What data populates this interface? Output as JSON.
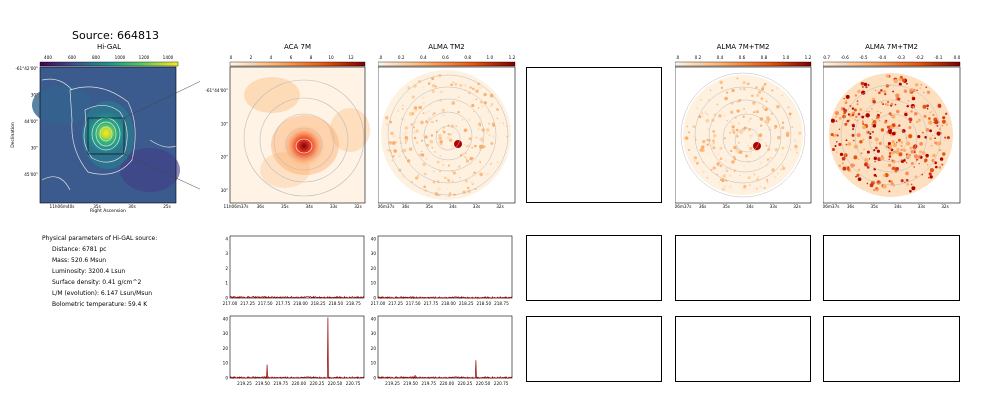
{
  "figure": {
    "title": "Source: 664813"
  },
  "params": {
    "heading": "Physical parameters of Hi-GAL source:",
    "lines": [
      "Distance: 6781 pc",
      "Mass: 520.6 Msun",
      "Luminosity: 3200.4 Lsun",
      "Surface density: 0.41 g/cm^2",
      "L/M (evolution): 6.147 Lsun/Msun",
      "Bolometric temperature: 59.4 K"
    ]
  },
  "colors": {
    "viridis_low": "#3b528b",
    "viridis_high": "#fde725",
    "orange_low": "#fff5eb",
    "orange_high": "#7f0000",
    "spectrum_line": "#8b0000",
    "contour": "#bbbbbb"
  },
  "chart_data": [
    {
      "type": "heatmap",
      "title": "Hi-GAL",
      "colormap": "viridis",
      "colorbar_ticks": [
        "400",
        "600",
        "800",
        "1000",
        "1200",
        "1400"
      ],
      "xlabel": "Right Ascension",
      "ylabel": "Declination",
      "xticks": [
        "11h06m40s",
        "35s",
        "30s",
        "25s"
      ],
      "yticks": [
        "-61°42'00\"",
        "30\"",
        "44'00\"",
        "30\"",
        "45'00\""
      ]
    },
    {
      "type": "heatmap",
      "title": "ACA 7M",
      "colormap": "orange",
      "colorbar_ticks": [
        "0",
        "2",
        "4",
        "6",
        "8",
        "10",
        "12"
      ],
      "xticks": [
        "11h06m37s",
        "36s",
        "35s",
        "34s",
        "33s",
        "32s"
      ],
      "yticks": [
        "-61°44'00\"",
        "10\"",
        "20\"",
        "30\""
      ]
    },
    {
      "type": "heatmap",
      "title": "ALMA TM2",
      "colormap": "orange",
      "colorbar_ticks": [
        "0.0",
        "0.2",
        "0.4",
        "0.6",
        "0.8",
        "1.0",
        "1.2"
      ],
      "xticks": [
        "11h06m37s",
        "36s",
        "35s",
        "34s",
        "33s",
        "32s"
      ]
    },
    {
      "type": "heatmap",
      "title": "ALMA 7M+TM2",
      "colormap": "orange",
      "colorbar_ticks": [
        "0.0",
        "0.2",
        "0.4",
        "0.6",
        "0.8",
        "1.0",
        "1.2"
      ],
      "xticks": [
        "11h06m37s",
        "36s",
        "35s",
        "34s",
        "33s",
        "32s"
      ]
    },
    {
      "type": "heatmap",
      "title": "ALMA 7M+TM2",
      "colormap": "orange",
      "colorbar_ticks": [
        "-0.7",
        "-0.6",
        "-0.5",
        "-0.4",
        "-0.3",
        "-0.2",
        "-0.1",
        "0.0"
      ],
      "xticks": [
        "11h06m37s",
        "36s",
        "35s",
        "34s",
        "33s",
        "32s"
      ]
    },
    {
      "type": "line",
      "panel": "spectrum-aca-low",
      "x": [
        217.0,
        218.9
      ],
      "xticks": [
        "217.00",
        "217.25",
        "217.50",
        "217.75",
        "218.00",
        "218.25",
        "218.50",
        "218.75"
      ],
      "yticks": [
        "0",
        "1",
        "2",
        "3",
        "4"
      ],
      "ylim": [
        0,
        4.2
      ],
      "series": [
        {
          "peaks": [],
          "baseline": 0.05
        }
      ]
    },
    {
      "type": "line",
      "panel": "spectrum-tm2-low",
      "x": [
        217.0,
        218.9
      ],
      "xticks": [
        "217.00",
        "217.25",
        "217.50",
        "217.75",
        "218.00",
        "218.25",
        "218.50",
        "218.75"
      ],
      "yticks": [
        "0",
        "10",
        "20",
        "30",
        "40"
      ],
      "ylim": [
        0,
        42
      ],
      "series": [
        {
          "peaks": [],
          "baseline": 0.3
        }
      ]
    },
    {
      "type": "line",
      "panel": "spectrum-aca-high",
      "x": [
        219.05,
        220.9
      ],
      "xticks": [
        "219.25",
        "219.50",
        "219.75",
        "220.00",
        "220.25",
        "220.50",
        "220.75"
      ],
      "yticks": [
        "0",
        "10",
        "20",
        "30",
        "40"
      ],
      "ylim": [
        0,
        42
      ],
      "series": [
        {
          "peaks": [
            [
              219.56,
              9
            ],
            [
              220.4,
              41
            ]
          ],
          "baseline": 0.3
        }
      ]
    },
    {
      "type": "line",
      "panel": "spectrum-tm2-high",
      "x": [
        219.05,
        220.9
      ],
      "xticks": [
        "219.25",
        "219.50",
        "219.75",
        "220.00",
        "220.25",
        "220.50",
        "220.75"
      ],
      "yticks": [
        "0",
        "10",
        "20",
        "30",
        "40"
      ],
      "ylim": [
        0,
        42
      ],
      "series": [
        {
          "peaks": [
            [
              219.56,
              2
            ],
            [
              220.4,
              12
            ]
          ],
          "baseline": 0.3
        }
      ]
    }
  ]
}
